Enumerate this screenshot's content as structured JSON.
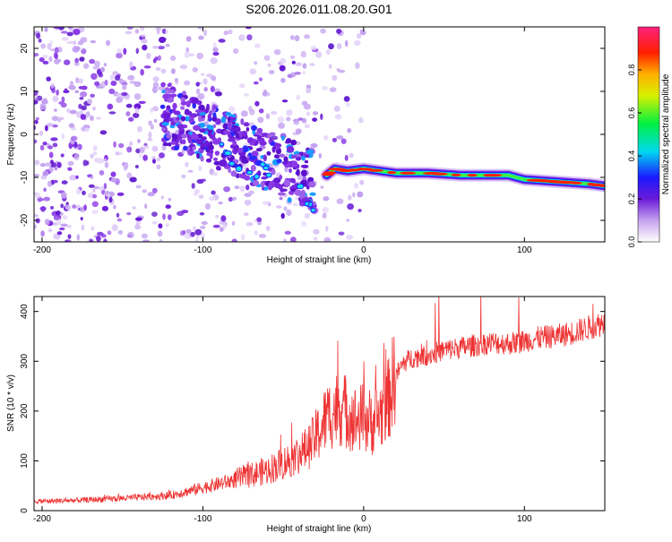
{
  "title": "S206.2026.011.08.20.G01",
  "chart_data": [
    {
      "type": "heatmap",
      "xlabel": "Height of straight line (km)",
      "ylabel": "Frequency (Hz)",
      "xlim": [
        -205,
        150
      ],
      "ylim": [
        -25,
        25
      ],
      "xticks": [
        -200,
        -100,
        0,
        100
      ],
      "yticks": [
        -20,
        -10,
        0,
        10,
        20
      ],
      "colorbar": {
        "label": "Normalized spectral amplitude",
        "range": [
          0.0,
          1.0
        ],
        "ticks": [
          0.0,
          0.2,
          0.4,
          0.6,
          0.8
        ],
        "tick_labels": [
          "0.0",
          "0.2",
          "0.4",
          "0.6",
          "0.8"
        ]
      },
      "ridge": {
        "description": "Main spectral ridge (frequency vs height)",
        "x": [
          -23,
          -18,
          -10,
          0,
          20,
          40,
          60,
          80,
          90,
          100,
          120,
          140,
          150
        ],
        "y": [
          -9.5,
          -8.0,
          -8.5,
          -8.0,
          -9.0,
          -9.0,
          -9.5,
          -9.5,
          -9.5,
          -10.5,
          -11,
          -11.5,
          -12
        ]
      }
    },
    {
      "type": "line",
      "xlabel": "Height of straight line (km)",
      "ylabel": "SNR (10 * v/v)",
      "xlim": [
        -205,
        150
      ],
      "ylim": [
        0,
        430
      ],
      "xticks": [
        -200,
        -100,
        0,
        100
      ],
      "yticks": [
        0,
        100,
        200,
        300,
        400
      ],
      "series": [
        {
          "name": "SNR",
          "color": "#ee3333",
          "x": [
            -205,
            -180,
            -150,
            -120,
            -100,
            -80,
            -60,
            -45,
            -35,
            -28,
            -24,
            -20,
            -15,
            -10,
            -5,
            0,
            5,
            10,
            15,
            20,
            25,
            30,
            40,
            50,
            60,
            70,
            80,
            90,
            100,
            110,
            120,
            130,
            140,
            150
          ],
          "y": [
            18,
            20,
            24,
            30,
            45,
            60,
            78,
            100,
            120,
            150,
            175,
            190,
            200,
            190,
            175,
            180,
            170,
            185,
            210,
            270,
            295,
            305,
            310,
            320,
            325,
            330,
            335,
            333,
            338,
            345,
            348,
            355,
            365,
            375
          ]
        }
      ]
    }
  ]
}
